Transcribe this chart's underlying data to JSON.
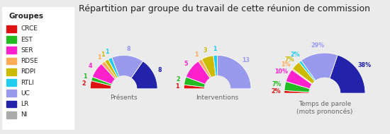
{
  "title": "Répartition par groupe du travail de cette réunion de commission",
  "groups": [
    "CRCE",
    "EST",
    "SER",
    "RDSE",
    "RDPI",
    "RTLI",
    "UC",
    "LR",
    "NI"
  ],
  "colors": [
    "#dd1111",
    "#22bb22",
    "#ff22cc",
    "#ffaa55",
    "#ccbb00",
    "#22ccee",
    "#9999ee",
    "#2222aa",
    "#aaaaaa"
  ],
  "presents": [
    2,
    1,
    4,
    1,
    1,
    1,
    8,
    8,
    0
  ],
  "interventions": [
    1,
    2,
    5,
    1,
    3,
    1,
    13,
    0,
    0
  ],
  "temps_parole": [
    2,
    7,
    10,
    1,
    7,
    2,
    29,
    38,
    0
  ],
  "chart_labels": [
    "Présents",
    "Interventions",
    "Temps de parole\n(mots prononcés)"
  ],
  "legend_title": "Groupes",
  "background_color": "#ebebeb",
  "legend_box_color": "#ffffff"
}
